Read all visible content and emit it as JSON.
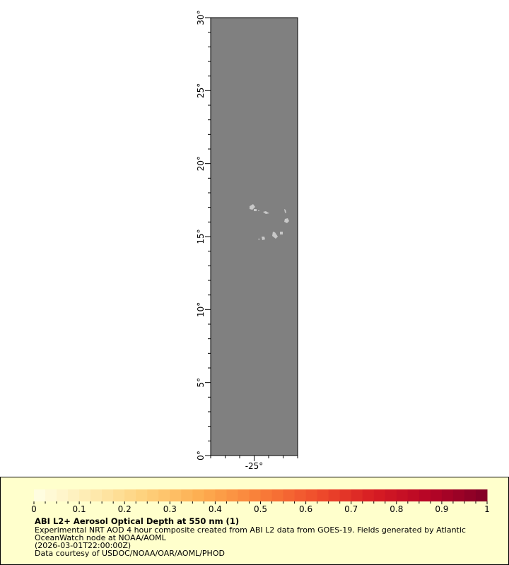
{
  "map": {
    "lat_range": [
      0,
      30
    ],
    "lon_range": [
      -28,
      -22
    ],
    "lat_tick_labels": [
      "0°",
      "5°",
      "10°",
      "15°",
      "20°",
      "25°",
      "30°"
    ],
    "lon_tick_labels": [
      "-25°"
    ],
    "nodata_color": "#808080",
    "land_color": "#c8c8c8"
  },
  "colorbar": {
    "min": 0,
    "max": 1,
    "bins": 40,
    "tick_labels": [
      "0",
      "0.1",
      "0.2",
      "0.3",
      "0.4",
      "0.5",
      "0.6",
      "0.7",
      "0.8",
      "0.9",
      "1"
    ],
    "palette": [
      "#ffffe5",
      "#feebb0",
      "#fed07a",
      "#fdab4e",
      "#f97d38",
      "#ef4d2c",
      "#d71c23",
      "#b50426",
      "#800026"
    ]
  },
  "legend": {
    "title": "ABI L2+ Aerosol Optical Depth at 550 nm (1)",
    "line1": "Experimental NRT AOD 4 hour composite created from ABI L2 data from GOES-19. Fields generated by Atlantic",
    "line2": "OceanWatch node at NOAA/AOML",
    "line3": "(2026-03-01T22:00:00Z)",
    "line4": "Data courtesy of USDOC/NOAA/OAR/AOML/PHOD"
  }
}
